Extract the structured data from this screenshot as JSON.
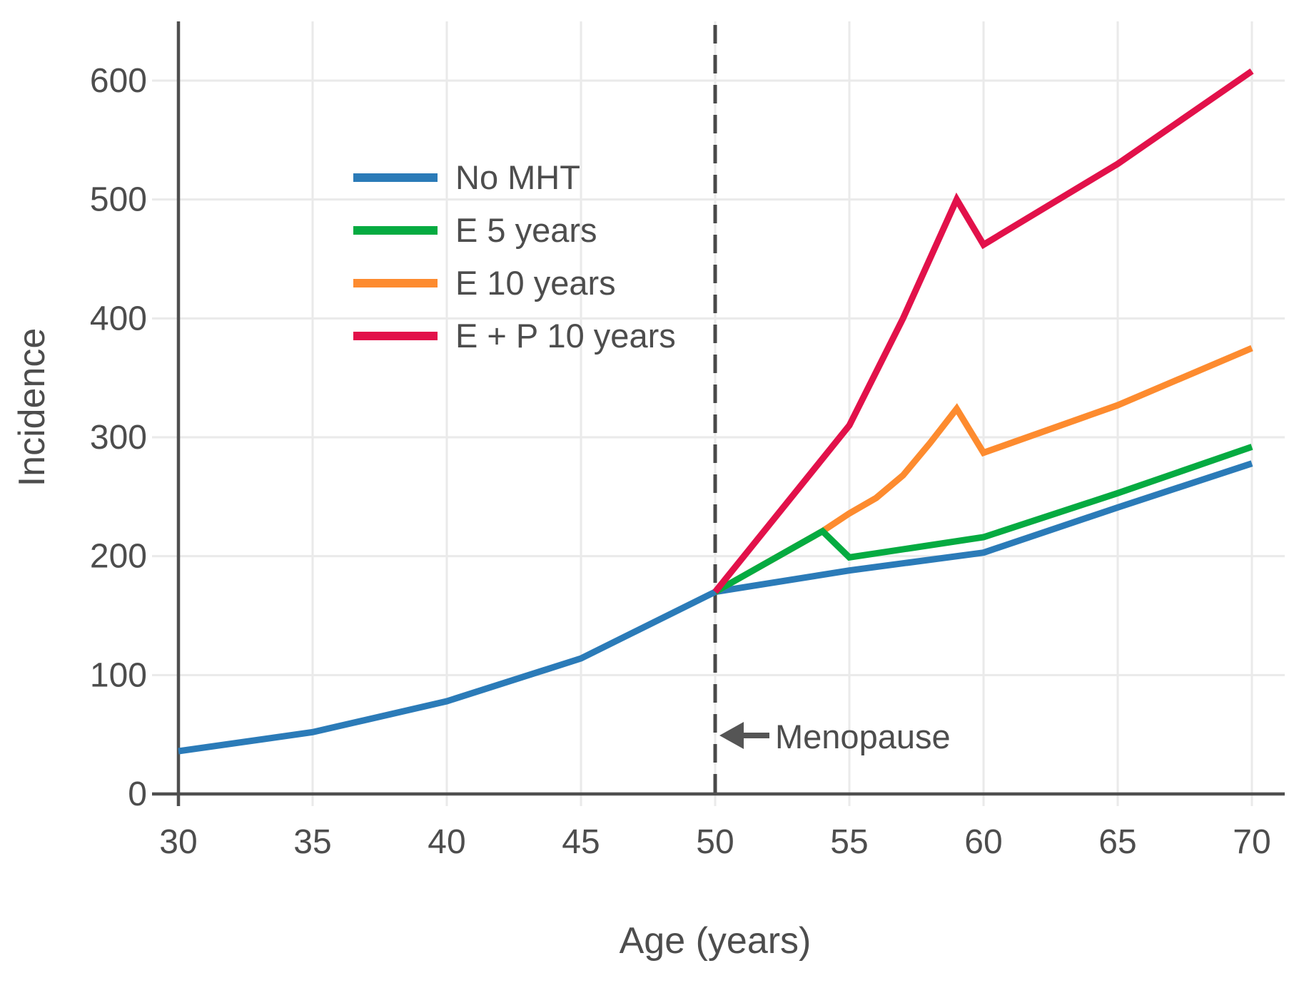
{
  "chart_data": {
    "type": "line",
    "title": "",
    "xlabel": "Age (years)",
    "ylabel": "Incidence",
    "xlim": [
      30,
      70
    ],
    "ylim": [
      0,
      650
    ],
    "x_ticks": [
      30,
      35,
      40,
      45,
      50,
      55,
      60,
      65,
      70
    ],
    "y_ticks": [
      0,
      100,
      200,
      300,
      400,
      500,
      600
    ],
    "grid": true,
    "legend_position": "upper-left-inside",
    "vline": {
      "x": 50,
      "style": "dashed",
      "label": "Menopause",
      "arrow": "left-arrow"
    },
    "series": [
      {
        "name": "No MHT",
        "color": "#2b7bb8",
        "points": [
          [
            30,
            36
          ],
          [
            35,
            52
          ],
          [
            40,
            78
          ],
          [
            45,
            114
          ],
          [
            50,
            170
          ],
          [
            55,
            188
          ],
          [
            60,
            203
          ],
          [
            65,
            241
          ],
          [
            70,
            278
          ]
        ]
      },
      {
        "name": "E 5 years",
        "color": "#05ab41",
        "points": [
          [
            50,
            170
          ],
          [
            54,
            221
          ],
          [
            55,
            199
          ],
          [
            60,
            216
          ],
          [
            65,
            253
          ],
          [
            70,
            292
          ]
        ]
      },
      {
        "name": "E 10 years",
        "color": "#fd8b2f",
        "points": [
          [
            50,
            170
          ],
          [
            54,
            221
          ],
          [
            55,
            236
          ],
          [
            56,
            249
          ],
          [
            57,
            268
          ],
          [
            58,
            295
          ],
          [
            59,
            324
          ],
          [
            60,
            287
          ],
          [
            65,
            327
          ],
          [
            70,
            375
          ]
        ]
      },
      {
        "name": "E + P 10 years",
        "color": "#e2114a",
        "points": [
          [
            50,
            170
          ],
          [
            55,
            310
          ],
          [
            57,
            400
          ],
          [
            59,
            500
          ],
          [
            60,
            462
          ],
          [
            65,
            530
          ],
          [
            70,
            608
          ]
        ]
      }
    ],
    "legend": [
      {
        "label": "No MHT",
        "color": "#2b7bb8"
      },
      {
        "label": "E 5 years",
        "color": "#05ab41"
      },
      {
        "label": "E 10 years",
        "color": "#fd8b2f"
      },
      {
        "label": "E + P 10 years",
        "color": "#e2114a"
      }
    ],
    "style": {
      "grid_color": "#eaeaea",
      "axis_color": "#4f4f4f",
      "dash_color": "#494949",
      "text_color": "#4d4d4d"
    }
  }
}
